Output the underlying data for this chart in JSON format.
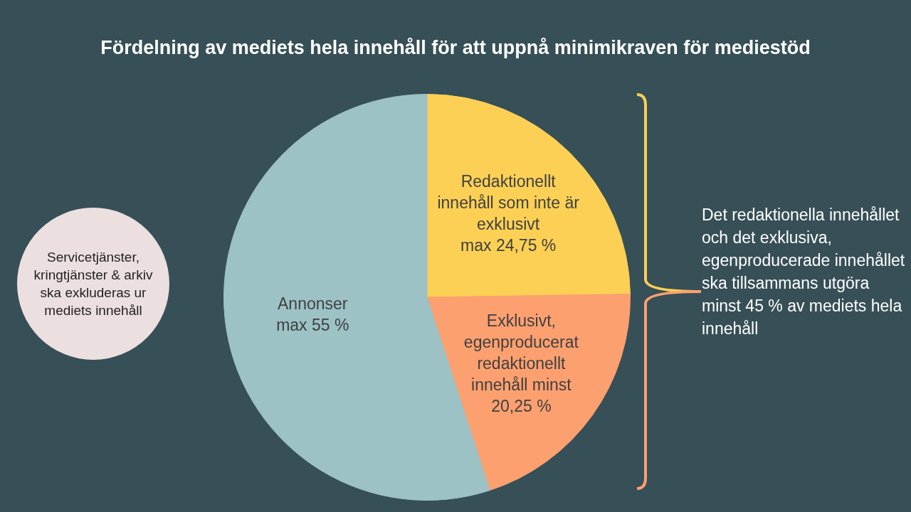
{
  "chart_data": {
    "type": "pie",
    "title": "Fördelning av mediets hela innehåll för att uppnå minimikraven för mediestöd",
    "categories": [
      "Redaktionellt innehåll som inte är exklusivt",
      "Exklusivt, egenproducerat redaktionellt innehåll",
      "Annonser"
    ],
    "values": [
      24.75,
      20.25,
      55
    ],
    "value_labels": [
      "max 24,75 %",
      "minst 20,25 %",
      "max 55 %"
    ],
    "colors": [
      "#fbd055",
      "#fda070",
      "#9cc2c6"
    ],
    "legend": false,
    "annotations": [
      "Servicetjänster, kringtjänster & arkiv ska exkluderas ur mediets innehåll",
      "Det redaktionella innehållet och det exklusiva, egenproducerade innehållet ska tillsammans utgöra minst 45 % av mediets hela innehåll"
    ]
  }
}
